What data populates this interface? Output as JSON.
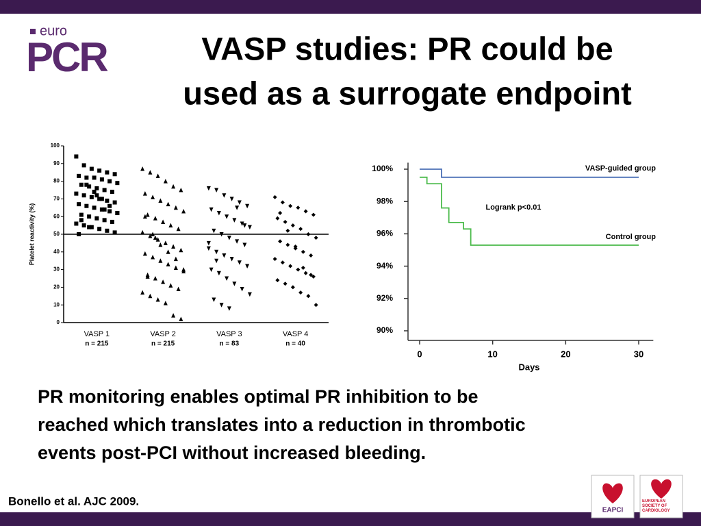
{
  "logo": {
    "small": "euro",
    "large": "PCR"
  },
  "header": {
    "title_lines": [
      "VASP studies: PR could be",
      "used as a surrogate endpoint"
    ]
  },
  "chart_data": [
    {
      "type": "strip",
      "ylabel": "Platelet reactivity (%)",
      "ylim": [
        0,
        100
      ],
      "yticks": [
        0,
        10,
        20,
        30,
        40,
        50,
        60,
        70,
        80,
        90,
        100
      ],
      "reference_line": 50,
      "categories": [
        "VASP 1",
        "VASP 2",
        "VASP 3",
        "VASP 4"
      ],
      "category_sublabels": [
        "n = 215",
        "n = 215",
        "n = 83",
        "n = 40"
      ],
      "series": [
        {
          "marker": "square",
          "color": "#000000",
          "values": [
            94,
            89,
            87,
            86,
            85,
            84,
            83,
            82,
            82,
            81,
            80,
            79,
            78,
            77,
            76,
            75,
            74,
            73,
            72,
            71,
            70,
            69,
            68,
            67,
            66,
            65,
            64,
            63,
            62,
            61,
            60,
            59,
            58,
            57,
            56,
            55,
            54,
            53,
            52,
            51,
            50,
            78,
            74,
            70,
            66,
            62,
            58,
            54,
            72,
            64
          ]
        },
        {
          "marker": "triangle-up",
          "color": "#000000",
          "values": [
            87,
            85,
            83,
            80,
            77,
            75,
            73,
            71,
            69,
            67,
            65,
            63,
            61,
            59,
            57,
            55,
            53,
            51,
            49,
            47,
            45,
            43,
            41,
            39,
            37,
            35,
            33,
            31,
            29,
            27,
            25,
            23,
            21,
            19,
            17,
            15,
            13,
            11,
            4,
            2,
            60,
            50,
            44,
            40,
            36,
            30,
            26,
            48
          ]
        },
        {
          "marker": "triangle-down",
          "color": "#000000",
          "values": [
            76,
            75,
            72,
            70,
            68,
            66,
            64,
            62,
            60,
            58,
            56,
            54,
            52,
            50,
            48,
            46,
            44,
            42,
            40,
            38,
            36,
            34,
            32,
            30,
            28,
            25,
            22,
            19,
            16,
            13,
            10,
            8,
            65,
            55,
            45,
            35
          ]
        },
        {
          "marker": "diamond",
          "color": "#000000",
          "values": [
            71,
            68,
            66,
            65,
            63,
            61,
            59,
            57,
            55,
            53,
            50,
            48,
            46,
            44,
            42,
            40,
            38,
            36,
            34,
            32,
            30,
            28,
            26,
            24,
            22,
            20,
            17,
            15,
            10,
            62,
            52,
            43,
            31,
            27
          ]
        }
      ]
    },
    {
      "type": "step-line",
      "xlabel": "Days",
      "xlim": [
        -1,
        32
      ],
      "xticks": [
        0,
        10,
        20,
        30
      ],
      "ylim": [
        90,
        100.4
      ],
      "yticks": [
        {
          "value": 90,
          "label": "90%"
        },
        {
          "value": 92,
          "label": "92%"
        },
        {
          "value": 94,
          "label": "94%"
        },
        {
          "value": 96,
          "label": "96%"
        },
        {
          "value": 98,
          "label": "98%"
        },
        {
          "value": 100,
          "label": "100%"
        }
      ],
      "annotation": "Logrank p<0.01",
      "series": [
        {
          "name": "VASP-guided group",
          "color": "#4a6fb5",
          "x": [
            0,
            3,
            30
          ],
          "values": [
            100,
            99.5,
            99.5
          ]
        },
        {
          "name": "Control group",
          "color": "#4cbb4c",
          "x": [
            0,
            1,
            3,
            4,
            6,
            7,
            30
          ],
          "values": [
            99.5,
            99.1,
            97.6,
            96.7,
            96.3,
            95.3,
            95.3
          ]
        }
      ]
    }
  ],
  "body": {
    "lines": [
      "PR monitoring enables optimal PR inhibition to be",
      "reached which translates into a reduction in thrombotic",
      "events post-PCI without increased bleeding."
    ]
  },
  "citation": "Bonello et al. AJC 2009.",
  "footer_logos": [
    {
      "label": "EAPCI"
    },
    {
      "label": "EUROPEAN SOCIETY OF CARDIOLOGY"
    }
  ]
}
